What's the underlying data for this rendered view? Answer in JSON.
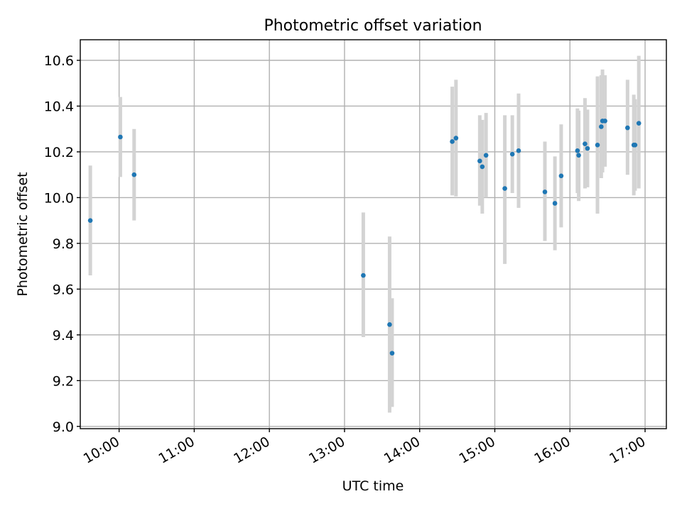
{
  "chart_data": {
    "type": "scatter",
    "title": "Photometric offset variation",
    "xlabel": "UTC time",
    "ylabel": "Photometric offset",
    "xlim": [
      "09:29",
      "17:17"
    ],
    "ylim": [
      8.99,
      10.69
    ],
    "x_ticks": [
      "10:00",
      "11:00",
      "12:00",
      "13:00",
      "14:00",
      "15:00",
      "16:00",
      "17:00"
    ],
    "y_ticks": [
      "9.0",
      "9.2",
      "9.4",
      "9.6",
      "9.8",
      "10.0",
      "10.2",
      "10.4",
      "10.6"
    ],
    "grid": true,
    "point_color": "#1f77b4",
    "errorbar_color": "#d3d3d3",
    "points": [
      {
        "t": "09:37",
        "y": 9.9,
        "lo": 9.66,
        "hi": 10.14
      },
      {
        "t": "10:01",
        "y": 10.265,
        "lo": 10.09,
        "hi": 10.44
      },
      {
        "t": "10:12",
        "y": 10.1,
        "lo": 9.9,
        "hi": 10.3
      },
      {
        "t": "13:15",
        "y": 9.66,
        "lo": 9.39,
        "hi": 9.935
      },
      {
        "t": "13:36",
        "y": 9.445,
        "lo": 9.06,
        "hi": 9.83
      },
      {
        "t": "13:38",
        "y": 9.32,
        "lo": 9.085,
        "hi": 9.56
      },
      {
        "t": "14:26",
        "y": 10.245,
        "lo": 10.01,
        "hi": 10.485
      },
      {
        "t": "14:29",
        "y": 10.26,
        "lo": 10.005,
        "hi": 10.515
      },
      {
        "t": "14:48",
        "y": 10.16,
        "lo": 9.965,
        "hi": 10.36
      },
      {
        "t": "14:50",
        "y": 10.135,
        "lo": 9.93,
        "hi": 10.34
      },
      {
        "t": "14:53",
        "y": 10.185,
        "lo": 10.0,
        "hi": 10.37
      },
      {
        "t": "15:08",
        "y": 10.04,
        "lo": 9.71,
        "hi": 10.36
      },
      {
        "t": "15:14",
        "y": 10.19,
        "lo": 10.02,
        "hi": 10.36
      },
      {
        "t": "15:19",
        "y": 10.205,
        "lo": 9.955,
        "hi": 10.455
      },
      {
        "t": "15:40",
        "y": 10.025,
        "lo": 9.81,
        "hi": 10.245
      },
      {
        "t": "15:48",
        "y": 9.975,
        "lo": 9.77,
        "hi": 10.18
      },
      {
        "t": "15:53",
        "y": 10.095,
        "lo": 9.87,
        "hi": 10.32
      },
      {
        "t": "16:06",
        "y": 10.205,
        "lo": 10.02,
        "hi": 10.39
      },
      {
        "t": "16:07",
        "y": 10.185,
        "lo": 9.985,
        "hi": 10.38
      },
      {
        "t": "16:12",
        "y": 10.235,
        "lo": 10.04,
        "hi": 10.435
      },
      {
        "t": "16:14",
        "y": 10.215,
        "lo": 10.045,
        "hi": 10.385
      },
      {
        "t": "16:22",
        "y": 10.23,
        "lo": 9.93,
        "hi": 10.53
      },
      {
        "t": "16:25",
        "y": 10.31,
        "lo": 10.085,
        "hi": 10.535
      },
      {
        "t": "16:26",
        "y": 10.335,
        "lo": 10.11,
        "hi": 10.56
      },
      {
        "t": "16:28",
        "y": 10.335,
        "lo": 10.135,
        "hi": 10.535
      },
      {
        "t": "16:46",
        "y": 10.305,
        "lo": 10.1,
        "hi": 10.515
      },
      {
        "t": "16:51",
        "y": 10.23,
        "lo": 10.01,
        "hi": 10.45
      },
      {
        "t": "16:52",
        "y": 10.23,
        "lo": 10.03,
        "hi": 10.43
      },
      {
        "t": "16:55",
        "y": 10.325,
        "lo": 10.04,
        "hi": 10.62
      }
    ]
  }
}
